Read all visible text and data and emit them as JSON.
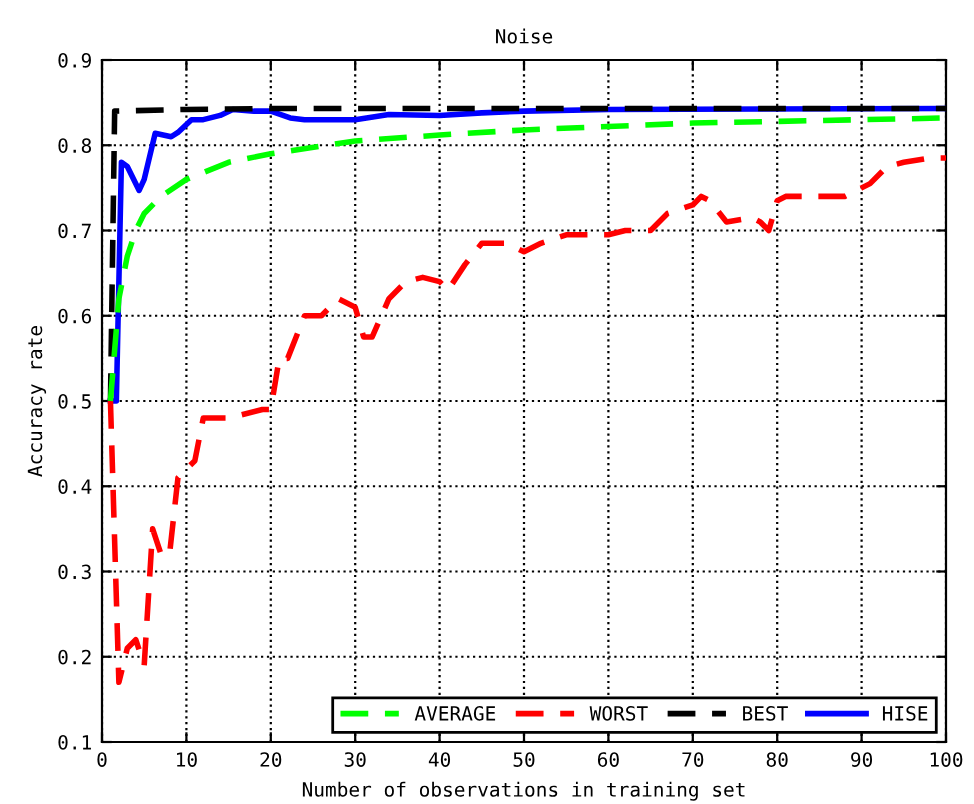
{
  "chart_data": {
    "type": "line",
    "title": "Noise",
    "xlabel": "Number of observations in training set",
    "ylabel": "Accuracy rate",
    "xlim": [
      0,
      100
    ],
    "ylim": [
      0.1,
      0.9
    ],
    "xticks": [
      0,
      10,
      20,
      30,
      40,
      50,
      60,
      70,
      80,
      90,
      100
    ],
    "yticks": [
      0.1,
      0.2,
      0.3,
      0.4,
      0.5,
      0.6,
      0.7,
      0.8,
      0.9
    ],
    "grid": true,
    "legend": "bottom right",
    "series": [
      {
        "name": "AVERAGE",
        "color": "#00ff00",
        "line_style": "dashed",
        "x": [
          1,
          2,
          3,
          4,
          5,
          7,
          10,
          15,
          20,
          30,
          40,
          50,
          60,
          70,
          80,
          100
        ],
        "values": [
          0.5,
          0.62,
          0.67,
          0.7,
          0.72,
          0.74,
          0.76,
          0.78,
          0.79,
          0.805,
          0.812,
          0.818,
          0.822,
          0.826,
          0.828,
          0.832
        ]
      },
      {
        "name": "WORST",
        "color": "#ff0000",
        "line_style": "dashed",
        "x": [
          1,
          2,
          3,
          4,
          5,
          6,
          7,
          8,
          9,
          10,
          11,
          12,
          15,
          19,
          20,
          21,
          22,
          24,
          26,
          28,
          30,
          31,
          32,
          34,
          36,
          38,
          40,
          41,
          43,
          45,
          48,
          50,
          52,
          55,
          60,
          62,
          65,
          67,
          70,
          71,
          72,
          74,
          77,
          78,
          79,
          80,
          81,
          85,
          88,
          90,
          91,
          93,
          95,
          98,
          100
        ],
        "values": [
          0.5,
          0.17,
          0.21,
          0.22,
          0.19,
          0.35,
          0.32,
          0.32,
          0.41,
          0.42,
          0.43,
          0.48,
          0.48,
          0.49,
          0.49,
          0.55,
          0.55,
          0.6,
          0.6,
          0.62,
          0.61,
          0.575,
          0.575,
          0.62,
          0.64,
          0.645,
          0.64,
          0.63,
          0.66,
          0.685,
          0.685,
          0.675,
          0.685,
          0.695,
          0.695,
          0.7,
          0.7,
          0.72,
          0.73,
          0.74,
          0.735,
          0.71,
          0.715,
          0.71,
          0.7,
          0.735,
          0.74,
          0.74,
          0.74,
          0.75,
          0.755,
          0.775,
          0.78,
          0.785,
          0.785
        ]
      },
      {
        "name": "BEST",
        "color": "#000000",
        "line_style": "dashed",
        "x": [
          1,
          1.5,
          10,
          20,
          100
        ],
        "values": [
          0.5,
          0.84,
          0.842,
          0.843,
          0.843
        ]
      },
      {
        "name": "HISE",
        "color": "#0000ff",
        "line_style": "solid",
        "x": [
          1,
          1.7,
          2.3,
          3,
          4.4,
          5,
          6.3,
          8.2,
          9,
          10.6,
          12,
          14,
          15.5,
          18,
          20,
          22.3,
          24,
          30,
          34,
          40,
          45,
          50,
          60,
          100
        ],
        "values": [
          0.5,
          0.5,
          0.78,
          0.775,
          0.747,
          0.76,
          0.814,
          0.81,
          0.815,
          0.83,
          0.83,
          0.835,
          0.842,
          0.84,
          0.84,
          0.832,
          0.83,
          0.83,
          0.836,
          0.835,
          0.838,
          0.84,
          0.842,
          0.843
        ]
      }
    ]
  }
}
